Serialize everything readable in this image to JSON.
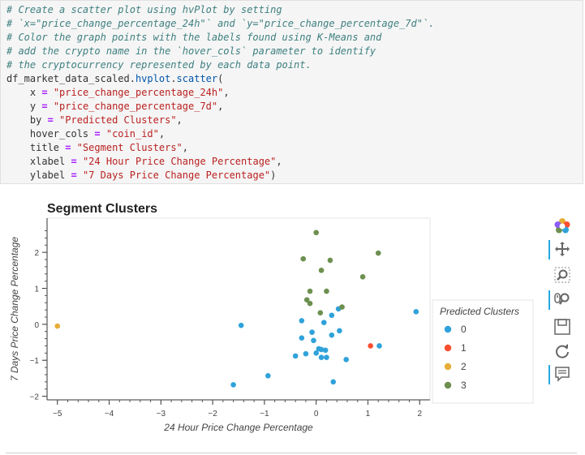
{
  "code": {
    "lines": [
      [
        {
          "t": "# Create a scatter plot using hvPlot by setting",
          "c": "cm"
        }
      ],
      [
        {
          "t": "# `x=\"price_change_percentage_24h\"` and `y=\"price_change_percentage_7d\"`.",
          "c": "cm"
        }
      ],
      [
        {
          "t": "# Color the graph points with the labels found using K-Means and",
          "c": "cm"
        }
      ],
      [
        {
          "t": "# add the crypto name in the `hover_cols` parameter to identify",
          "c": "cm"
        }
      ],
      [
        {
          "t": "# the cryptocurrency represented by each data point.",
          "c": "cm"
        }
      ],
      [
        {
          "t": "df_market_data_scaled.",
          "c": ""
        },
        {
          "t": "hvplot",
          "c": "fn"
        },
        {
          "t": ".",
          "c": ""
        },
        {
          "t": "scatter",
          "c": "fn"
        },
        {
          "t": "(",
          "c": ""
        }
      ],
      [
        {
          "t": "    x ",
          "c": ""
        },
        {
          "t": "=",
          "c": "op"
        },
        {
          "t": " ",
          "c": ""
        },
        {
          "t": "\"price_change_percentage_24h\"",
          "c": "st"
        },
        {
          "t": ",",
          "c": ""
        }
      ],
      [
        {
          "t": "    y ",
          "c": ""
        },
        {
          "t": "=",
          "c": "op"
        },
        {
          "t": " ",
          "c": ""
        },
        {
          "t": "\"price_change_percentage_7d\"",
          "c": "st"
        },
        {
          "t": ",",
          "c": ""
        }
      ],
      [
        {
          "t": "    by ",
          "c": ""
        },
        {
          "t": "=",
          "c": "op"
        },
        {
          "t": " ",
          "c": ""
        },
        {
          "t": "\"Predicted Clusters\"",
          "c": "st"
        },
        {
          "t": ",",
          "c": ""
        }
      ],
      [
        {
          "t": "    hover_cols ",
          "c": ""
        },
        {
          "t": "=",
          "c": "op"
        },
        {
          "t": " ",
          "c": ""
        },
        {
          "t": "\"coin_id\"",
          "c": "st"
        },
        {
          "t": ",",
          "c": ""
        }
      ],
      [
        {
          "t": "    title ",
          "c": ""
        },
        {
          "t": "=",
          "c": "op"
        },
        {
          "t": " ",
          "c": ""
        },
        {
          "t": "\"Segment Clusters\"",
          "c": "st"
        },
        {
          "t": ",",
          "c": ""
        }
      ],
      [
        {
          "t": "    xlabel ",
          "c": ""
        },
        {
          "t": "=",
          "c": "op"
        },
        {
          "t": " ",
          "c": ""
        },
        {
          "t": "\"24 Hour Price Change Percentage\"",
          "c": "st"
        },
        {
          "t": ",",
          "c": ""
        }
      ],
      [
        {
          "t": "    ylabel ",
          "c": ""
        },
        {
          "t": "=",
          "c": "op"
        },
        {
          "t": " ",
          "c": ""
        },
        {
          "t": "\"7 Days Price Change Percentage\"",
          "c": "st"
        },
        {
          "t": ")",
          "c": ""
        }
      ]
    ]
  },
  "chart_data": {
    "type": "scatter",
    "title": "Segment Clusters",
    "xlabel": "24 Hour Price Change Percentage",
    "ylabel": "7 Days Price Change Percentage",
    "xlim": [
      -5.2,
      2.2
    ],
    "ylim": [
      -2.1,
      2.95
    ],
    "xticks": [
      -5,
      -4,
      -3,
      -2,
      -1,
      0,
      1,
      2
    ],
    "yticks": [
      -2,
      -1,
      0,
      1,
      2
    ],
    "grid": false,
    "legend_title": "Predicted Clusters",
    "legend_position": "right",
    "series": [
      {
        "name": "0",
        "color": "#30a2da",
        "points": [
          [
            -1.45,
            -0.03
          ],
          [
            -1.6,
            -1.68
          ],
          [
            -0.93,
            -1.43
          ],
          [
            1.93,
            0.35
          ],
          [
            0.43,
            0.43
          ],
          [
            0.3,
            0.25
          ],
          [
            -0.28,
            0.1
          ],
          [
            0.15,
            0.05
          ],
          [
            -0.08,
            -0.22
          ],
          [
            0.45,
            -0.18
          ],
          [
            0.3,
            -0.3
          ],
          [
            -0.28,
            -0.38
          ],
          [
            -0.05,
            -0.45
          ],
          [
            0.05,
            -0.68
          ],
          [
            0.1,
            -0.7
          ],
          [
            0.18,
            -0.72
          ],
          [
            -0.2,
            -0.82
          ],
          [
            0.0,
            -0.8
          ],
          [
            -0.4,
            -0.88
          ],
          [
            0.1,
            -0.92
          ],
          [
            0.2,
            -0.92
          ],
          [
            0.58,
            -0.98
          ],
          [
            1.22,
            -0.6
          ],
          [
            0.33,
            -1.6
          ]
        ]
      },
      {
        "name": "1",
        "color": "#fc4f30",
        "points": [
          [
            1.05,
            -0.6
          ]
        ]
      },
      {
        "name": "2",
        "color": "#e5ae38",
        "points": [
          [
            -5.0,
            -0.05
          ]
        ]
      },
      {
        "name": "3",
        "color": "#6d904f",
        "points": [
          [
            0.0,
            2.55
          ],
          [
            1.2,
            1.98
          ],
          [
            -0.25,
            1.82
          ],
          [
            0.27,
            1.78
          ],
          [
            0.1,
            1.5
          ],
          [
            0.9,
            1.32
          ],
          [
            -0.12,
            0.92
          ],
          [
            0.2,
            0.92
          ],
          [
            -0.18,
            0.68
          ],
          [
            -0.12,
            0.58
          ],
          [
            0.5,
            0.48
          ],
          [
            0.08,
            0.32
          ]
        ]
      }
    ]
  },
  "toolbar": {
    "tools": [
      {
        "name": "bokeh-logo-icon",
        "active": false,
        "interactable": false
      },
      {
        "name": "pan-icon",
        "active": true,
        "interactable": true
      },
      {
        "name": "box-zoom-icon",
        "active": false,
        "interactable": true
      },
      {
        "name": "wheel-zoom-icon",
        "active": true,
        "interactable": true
      },
      {
        "name": "save-icon",
        "active": false,
        "interactable": true
      },
      {
        "name": "reset-icon",
        "active": false,
        "interactable": true
      },
      {
        "name": "hover-icon",
        "active": true,
        "interactable": true
      }
    ]
  }
}
